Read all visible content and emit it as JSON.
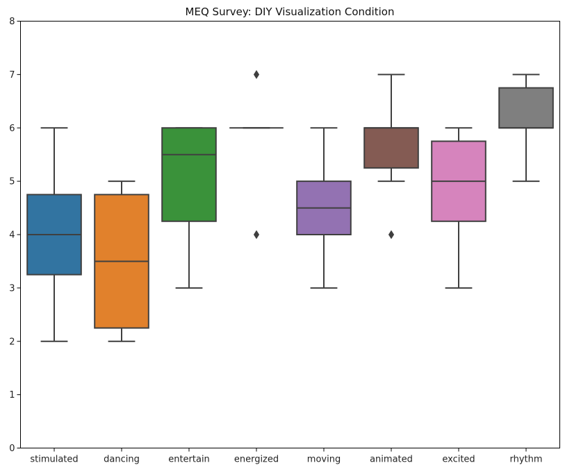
{
  "chart_data": {
    "type": "box",
    "title": "MEQ Survey: DIY Visualization Condition",
    "xlabel": "",
    "ylabel": "",
    "ylim": [
      0,
      8
    ],
    "yticks": [
      0,
      1,
      2,
      3,
      4,
      5,
      6,
      7,
      8
    ],
    "grid": false,
    "legend": "none",
    "categories": [
      "stimulated",
      "dancing",
      "entertain",
      "energized",
      "moving",
      "animated",
      "excited",
      "rhythm"
    ],
    "boxes": [
      {
        "category": "stimulated",
        "color": "#3274a1",
        "whisker_low": 2,
        "q1": 3.25,
        "median": 4,
        "q3": 4.75,
        "whisker_high": 6,
        "outliers": []
      },
      {
        "category": "dancing",
        "color": "#e1812c",
        "whisker_low": 2,
        "q1": 2.25,
        "median": 3.5,
        "q3": 4.75,
        "whisker_high": 5,
        "outliers": []
      },
      {
        "category": "entertain",
        "color": "#3a923a",
        "whisker_low": 3,
        "q1": 4.25,
        "median": 5.5,
        "q3": 6,
        "whisker_high": 6,
        "outliers": []
      },
      {
        "category": "energized",
        "color": "#c03d3e",
        "whisker_low": 6,
        "q1": 6,
        "median": 6,
        "q3": 6,
        "whisker_high": 6,
        "outliers": [
          7,
          4
        ]
      },
      {
        "category": "moving",
        "color": "#9372b2",
        "whisker_low": 3,
        "q1": 4,
        "median": 4.5,
        "q3": 5,
        "whisker_high": 6,
        "outliers": []
      },
      {
        "category": "animated",
        "color": "#845b53",
        "whisker_low": 5,
        "q1": 5.25,
        "median": 6,
        "q3": 6,
        "whisker_high": 7,
        "outliers": [
          4
        ]
      },
      {
        "category": "excited",
        "color": "#d684bd",
        "whisker_low": 3,
        "q1": 4.25,
        "median": 5,
        "q3": 5.75,
        "whisker_high": 6,
        "outliers": []
      },
      {
        "category": "rhythm",
        "color": "#7f7f7f",
        "whisker_low": 5,
        "q1": 6,
        "median": 6,
        "q3": 6.75,
        "whisker_high": 7,
        "outliers": []
      }
    ],
    "line_color": "#3f3f3f",
    "axis_color": "#000000"
  }
}
